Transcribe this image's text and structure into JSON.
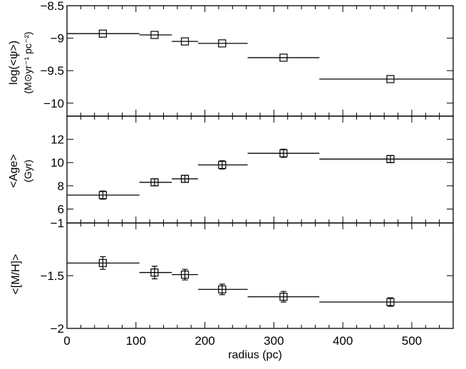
{
  "chart_data": [
    {
      "type": "scatter",
      "panel": "top",
      "ylabel": "log(<ψ>)",
      "ylabel_units": "(M⊙yr⁻¹ pc⁻²)",
      "ylim": [
        -10.2,
        -8.5
      ],
      "yticks": [
        -8.5,
        -9,
        -9.5,
        -10
      ],
      "ytick_labels": [
        "−8.5",
        "−9",
        "−9.5",
        "−10"
      ],
      "series": [
        {
          "points": [
            {
              "x": 52,
              "y": -8.93,
              "bin": [
                0,
                105
              ],
              "err": 0
            },
            {
              "x": 127,
              "y": -8.95,
              "bin": [
                105,
                152
              ],
              "err": 0
            },
            {
              "x": 171,
              "y": -9.05,
              "bin": [
                152,
                190
              ],
              "err": 0
            },
            {
              "x": 225,
              "y": -9.08,
              "bin": [
                190,
                262
              ],
              "err": 0
            },
            {
              "x": 314,
              "y": -9.3,
              "bin": [
                262,
                366
              ],
              "err": 0
            },
            {
              "x": 469,
              "y": -9.63,
              "bin": [
                366,
                560
              ],
              "err": 0
            }
          ]
        }
      ]
    },
    {
      "type": "scatter",
      "panel": "middle",
      "ylabel": "<Age>",
      "ylabel_units": "(Gyr)",
      "ylim": [
        4.8,
        14.0
      ],
      "yticks": [
        6,
        8,
        10,
        12
      ],
      "ytick_labels": [
        "6",
        "8",
        "10",
        "12"
      ],
      "series": [
        {
          "points": [
            {
              "x": 52,
              "y": 7.2,
              "bin": [
                0,
                105
              ],
              "err": 0.35
            },
            {
              "x": 127,
              "y": 8.3,
              "bin": [
                105,
                152
              ],
              "err": 0.3
            },
            {
              "x": 171,
              "y": 8.6,
              "bin": [
                152,
                190
              ],
              "err": 0.3
            },
            {
              "x": 225,
              "y": 9.8,
              "bin": [
                190,
                262
              ],
              "err": 0.35
            },
            {
              "x": 314,
              "y": 10.8,
              "bin": [
                262,
                366
              ],
              "err": 0.35
            },
            {
              "x": 469,
              "y": 10.3,
              "bin": [
                366,
                560
              ],
              "err": 0.3
            }
          ]
        }
      ]
    },
    {
      "type": "scatter",
      "panel": "bottom",
      "ylabel": "<[M/H]>",
      "ylim": [
        -2.0,
        -1.0
      ],
      "yticks": [
        -1,
        -1.5,
        -2
      ],
      "ytick_labels": [
        "−1",
        "−1.5",
        "−2"
      ],
      "xlabel": "radius (pc)",
      "xlim": [
        0,
        560
      ],
      "xticks": [
        0,
        100,
        200,
        300,
        400,
        500
      ],
      "xtick_labels": [
        "0",
        "100",
        "200",
        "300",
        "400",
        "500"
      ],
      "series": [
        {
          "points": [
            {
              "x": 52,
              "y": -1.38,
              "bin": [
                0,
                105
              ],
              "err": 0.06
            },
            {
              "x": 127,
              "y": -1.47,
              "bin": [
                105,
                152
              ],
              "err": 0.06
            },
            {
              "x": 171,
              "y": -1.49,
              "bin": [
                152,
                190
              ],
              "err": 0.05
            },
            {
              "x": 225,
              "y": -1.63,
              "bin": [
                190,
                262
              ],
              "err": 0.05
            },
            {
              "x": 314,
              "y": -1.7,
              "bin": [
                262,
                366
              ],
              "err": 0.05
            },
            {
              "x": 469,
              "y": -1.75,
              "bin": [
                366,
                560
              ],
              "err": 0.04
            }
          ]
        }
      ]
    }
  ]
}
